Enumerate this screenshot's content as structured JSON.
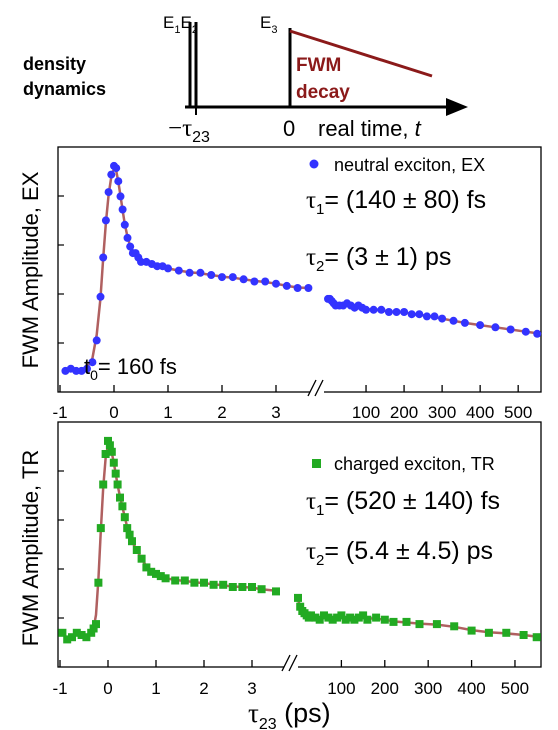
{
  "pulse_diagram": {
    "pulse_labels": {
      "e1": "E",
      "e1_sub": "1",
      "e2": "E",
      "e2_sub": "2",
      "e3": "E",
      "e3_sub": "3"
    },
    "density_label_line1": "density",
    "density_label_line2": "dynamics",
    "fwm_label_line1": "FWM",
    "fwm_label_line2": "decay",
    "tau_label": "−τ",
    "tau_sub": "23",
    "zero_label": "0",
    "axis_label_text": "real time, ",
    "axis_label_var": "t",
    "decay_color": "#8b1a1a"
  },
  "chart_data": [
    {
      "type": "scatter",
      "ylabel": "FWM Amplitude, EX",
      "x_axis": "broken",
      "x_segment1": {
        "range": [
          -1,
          4
        ],
        "ticks": [
          "-1",
          "0",
          "1",
          "2",
          "3"
        ]
      },
      "x_segment2": {
        "range": [
          0,
          560
        ],
        "ticks": [
          "100",
          "200",
          "300",
          "400",
          "500"
        ]
      },
      "ylim": [
        0,
        1.05
      ],
      "series": [
        {
          "name": "neutral exciton, EX",
          "marker": "circle",
          "color": "#3333ff",
          "x": [
            -0.9,
            -0.8,
            -0.7,
            -0.6,
            -0.5,
            -0.4,
            -0.32,
            -0.25,
            -0.2,
            -0.15,
            -0.1,
            -0.05,
            0,
            0.04,
            0.08,
            0.12,
            0.16,
            0.2,
            0.25,
            0.3,
            0.35,
            0.4,
            0.45,
            0.5,
            0.6,
            0.7,
            0.8,
            0.9,
            1.0,
            1.2,
            1.4,
            1.6,
            1.8,
            2.0,
            2.2,
            2.4,
            2.6,
            2.8,
            3.0,
            3.2,
            3.4,
            3.6
          ],
          "y": [
            0.06,
            0.07,
            0.06,
            0.06,
            0.07,
            0.1,
            0.2,
            0.4,
            0.58,
            0.75,
            0.88,
            0.96,
            1.0,
            0.99,
            0.93,
            0.86,
            0.8,
            0.73,
            0.67,
            0.63,
            0.6,
            0.6,
            0.58,
            0.56,
            0.56,
            0.55,
            0.54,
            0.54,
            0.53,
            0.52,
            0.51,
            0.51,
            0.5,
            0.49,
            0.49,
            0.48,
            0.47,
            0.47,
            0.46,
            0.45,
            0.44,
            0.44
          ],
          "x2": [
            0,
            5,
            10,
            15,
            20,
            30,
            40,
            50,
            60,
            70,
            80,
            90,
            100,
            120,
            140,
            160,
            180,
            200,
            220,
            240,
            260,
            280,
            300,
            330,
            360,
            400,
            440,
            480,
            520,
            550
          ],
          "y2": [
            0.39,
            0.39,
            0.38,
            0.37,
            0.36,
            0.36,
            0.36,
            0.37,
            0.36,
            0.35,
            0.36,
            0.35,
            0.34,
            0.34,
            0.34,
            0.33,
            0.33,
            0.33,
            0.32,
            0.32,
            0.31,
            0.31,
            0.3,
            0.29,
            0.28,
            0.27,
            0.26,
            0.25,
            0.24,
            0.23
          ]
        }
      ],
      "annotations": {
        "t0": "t",
        "t0_sub": "0",
        "t0_value": "= 160 fs",
        "tau1": "τ",
        "tau1_sub": "1",
        "tau1_value": "= (140 ±  80) fs",
        "tau2": "τ",
        "tau2_sub": "2",
        "tau2_value": "= (3 ± 1) ps"
      }
    },
    {
      "type": "scatter",
      "ylabel": "FWM Amplitude, TR",
      "xlabel": "τ",
      "xlabel_sub": "23",
      "xlabel_unit": " (ps)",
      "x_axis": "broken",
      "x_segment1": {
        "range": [
          -1,
          4
        ],
        "ticks": [
          "-1",
          "0",
          "1",
          "2",
          "3"
        ]
      },
      "x_segment2": {
        "range": [
          0,
          560
        ],
        "ticks": [
          "100",
          "200",
          "300",
          "400",
          "500"
        ]
      },
      "ylim": [
        0,
        1.05
      ],
      "series": [
        {
          "name": "charged exciton, TR",
          "marker": "square",
          "color": "#22aa22",
          "x": [
            -0.95,
            -0.85,
            -0.75,
            -0.65,
            -0.55,
            -0.45,
            -0.35,
            -0.3,
            -0.25,
            -0.2,
            -0.15,
            -0.1,
            -0.05,
            0,
            0.04,
            0.08,
            0.12,
            0.16,
            0.2,
            0.25,
            0.3,
            0.35,
            0.4,
            0.45,
            0.5,
            0.6,
            0.7,
            0.8,
            0.9,
            1.0,
            1.1,
            1.2,
            1.4,
            1.6,
            1.8,
            2.0,
            2.2,
            2.4,
            2.6,
            2.8,
            3.0,
            3.2,
            3.5
          ],
          "y": [
            0.12,
            0.09,
            0.1,
            0.12,
            0.11,
            0.1,
            0.12,
            0.14,
            0.16,
            0.35,
            0.6,
            0.8,
            0.94,
            1.0,
            0.98,
            0.95,
            0.9,
            0.85,
            0.8,
            0.74,
            0.7,
            0.65,
            0.6,
            0.57,
            0.54,
            0.5,
            0.46,
            0.42,
            0.4,
            0.39,
            0.38,
            0.37,
            0.36,
            0.36,
            0.35,
            0.35,
            0.34,
            0.34,
            0.33,
            0.33,
            0.33,
            0.32,
            0.31
          ],
          "x2": [
            0,
            5,
            10,
            15,
            20,
            25,
            30,
            40,
            50,
            60,
            70,
            80,
            90,
            100,
            110,
            120,
            130,
            140,
            150,
            160,
            180,
            200,
            220,
            250,
            280,
            320,
            360,
            400,
            440,
            480,
            520,
            550
          ],
          "y2": [
            0.28,
            0.24,
            0.22,
            0.21,
            0.2,
            0.19,
            0.2,
            0.19,
            0.18,
            0.2,
            0.19,
            0.18,
            0.19,
            0.2,
            0.18,
            0.19,
            0.18,
            0.19,
            0.2,
            0.18,
            0.19,
            0.18,
            0.17,
            0.17,
            0.16,
            0.16,
            0.15,
            0.13,
            0.12,
            0.12,
            0.11,
            0.1
          ]
        }
      ],
      "annotations": {
        "tau1": "τ",
        "tau1_sub": "1",
        "tau1_value": "= (520 ± 140) fs",
        "tau2": "τ",
        "tau2_sub": "2",
        "tau2_value": "= (5.4 ± 4.5) ps"
      }
    }
  ],
  "colors": {
    "fit_line": "#b06060",
    "axis": "#000000"
  }
}
